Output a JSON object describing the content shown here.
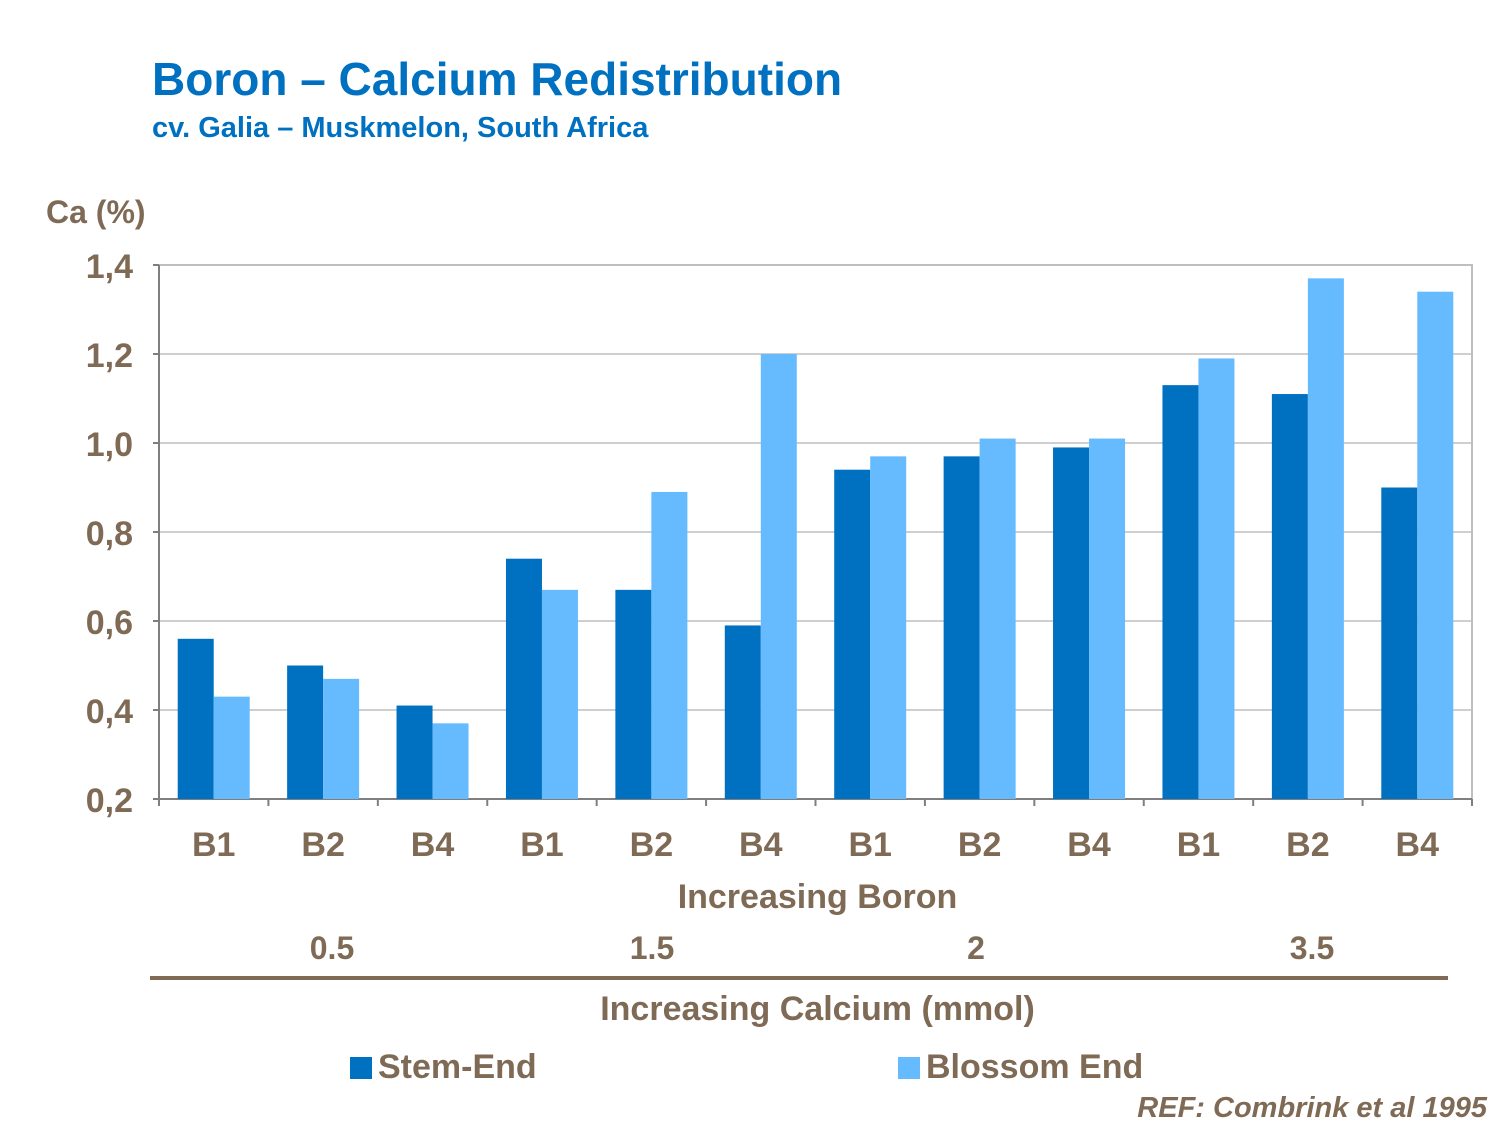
{
  "chart_data": {
    "type": "bar",
    "title": "Boron – Calcium Redistribution",
    "subtitle": "cv. Galia – Muskmelon, South Africa",
    "ylabel": "Ca (%)",
    "xlabel": "Increasing Boron",
    "group_label": "Increasing Calcium (mmol)",
    "groups": [
      "0.5",
      "1.5",
      "2",
      "3.5"
    ],
    "categories": [
      "B1",
      "B2",
      "B4",
      "B1",
      "B2",
      "B4",
      "B1",
      "B2",
      "B4",
      "B1",
      "B2",
      "B4"
    ],
    "series": [
      {
        "name": "Stem-End",
        "color": "#0070c0",
        "values": [
          0.56,
          0.5,
          0.41,
          0.74,
          0.67,
          0.59,
          0.94,
          0.97,
          0.99,
          1.13,
          1.11,
          0.9
        ]
      },
      {
        "name": "Blossom End",
        "color": "#66bbff",
        "values": [
          0.43,
          0.47,
          0.37,
          0.67,
          0.89,
          1.2,
          0.97,
          1.01,
          1.01,
          1.19,
          1.37,
          1.34
        ]
      }
    ],
    "ylim": [
      0.2,
      1.4
    ],
    "yticks": [
      "0,2",
      "0,4",
      "0,6",
      "0,8",
      "1,0",
      "1,2",
      "1,4"
    ],
    "grid": true,
    "legend": "bottom",
    "reference": "REF: Combrink et al 1995"
  }
}
